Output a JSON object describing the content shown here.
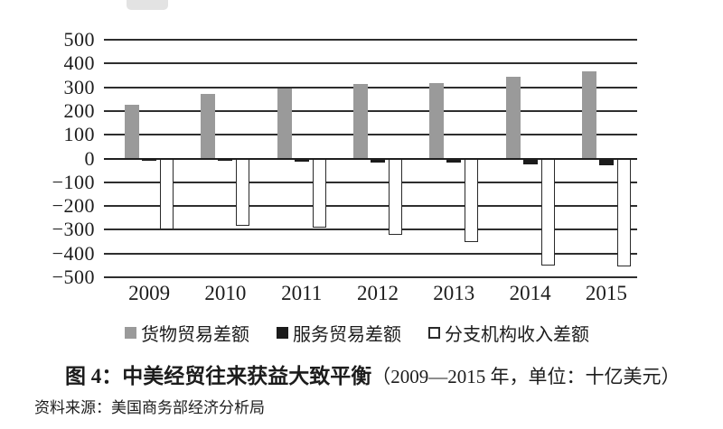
{
  "figure": {
    "caption_prefix": "图 4：",
    "caption_title": "中美经贸往来获益大致平衡",
    "caption_suffix": "（2009—2015 年，单位：十亿美元）",
    "source": "资料来源：美国商务部经济分析局"
  },
  "colors": {
    "goods_bar": "#9a9a9a",
    "services_bar": "#1b1b1b",
    "branch_bar_fill": "#ffffff",
    "branch_bar_border": "#2a2a2a",
    "gridline": "#2e2e2e",
    "text": "#1c1c1c"
  },
  "chart_data": {
    "type": "bar",
    "title": "中美经贸往来获益大致平衡",
    "subtitle": "2009—2015 年，单位：十亿美元",
    "categories": [
      "2009",
      "2010",
      "2011",
      "2012",
      "2013",
      "2014",
      "2015"
    ],
    "series": [
      {
        "name": "货物贸易差额",
        "color": "#9a9a9a",
        "border": null,
        "values": [
          227,
          273,
          295,
          315,
          319,
          344,
          367
        ]
      },
      {
        "name": "服务贸易差额",
        "color": "#1b1b1b",
        "border": null,
        "values": [
          -6,
          -10,
          -13,
          -16,
          -19,
          -25,
          -30
        ]
      },
      {
        "name": "分支机构收入差额",
        "color": "#ffffff",
        "border": "#2a2a2a",
        "values": [
          -300,
          -285,
          -290,
          -320,
          -350,
          -450,
          -455
        ]
      }
    ],
    "ylim": [
      -500,
      500
    ],
    "ytick_step": 100,
    "yticks": [
      "500",
      "400",
      "300",
      "200",
      "100",
      "0",
      "−100",
      "−200",
      "−300",
      "−400",
      "−500"
    ],
    "xlabel": "",
    "ylabel": "",
    "grid": true,
    "legend_position": "bottom"
  }
}
